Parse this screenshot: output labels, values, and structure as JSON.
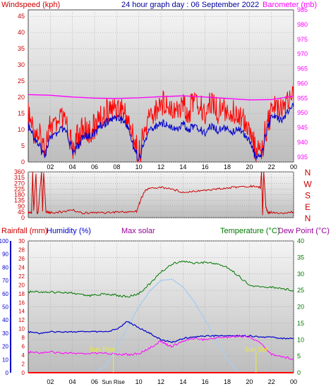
{
  "header": {
    "left_label": "Windspeed (kph)",
    "title": "24 hour graph day : 06 September 2022",
    "right_label": "Barometer (mb)"
  },
  "lower_header": {
    "rainfall_label": "Rainfall (mm)",
    "humidity_label": "Humidity (%)",
    "solar_label": "Max solar",
    "temperature_label": "Temperature (°C)",
    "dewpoint_label": "Dew Point (°C)"
  },
  "annotations": {
    "sunrise_label": "Sun Rise",
    "sunrise_time_label": "Sun Rise",
    "sunset_time_label": "Sun Set"
  },
  "colors": {
    "wind": "#ff0000",
    "gust": "#0000cc",
    "barometer": "#ff00ff",
    "direction": "#cc0000",
    "temperature": "#007700",
    "dewpoint": "#ff00ff",
    "humidity": "#0000cc",
    "rainfall": "#ff0000",
    "solar": "#aaccee"
  },
  "chart_data": [
    {
      "type": "line",
      "name": "wind-barometer-panel",
      "x_ticks": [
        "02",
        "04",
        "06",
        "08",
        "10",
        "12",
        "14",
        "16",
        "18",
        "20",
        "22",
        "00"
      ],
      "x_range": [
        0,
        24
      ],
      "left_axis": {
        "ticks": [
          0,
          5,
          10,
          15,
          20,
          25,
          30,
          35,
          40,
          45
        ],
        "range": [
          0,
          47
        ]
      },
      "right_axis": {
        "ticks": [
          935,
          940,
          945,
          950,
          955,
          960,
          965,
          970,
          975,
          980,
          985
        ],
        "range": [
          933.3,
          985
        ]
      },
      "series": [
        {
          "key": "wind",
          "axis": "left",
          "x": [
            0,
            0.5,
            1,
            1.5,
            2,
            2.5,
            3,
            3.5,
            4,
            4.5,
            5,
            5.5,
            6,
            6.5,
            7,
            7.5,
            8,
            8.5,
            9,
            9.5,
            10,
            10.5,
            11,
            11.5,
            12,
            12.5,
            13,
            13.5,
            14,
            14.5,
            15,
            15.5,
            16,
            16.5,
            17,
            17.5,
            18,
            18.5,
            19,
            19.5,
            20,
            20.5,
            21,
            21.5,
            22,
            22.5,
            23,
            23.5,
            24
          ],
          "values": [
            14,
            10,
            8,
            4,
            12,
            10,
            13,
            11,
            4,
            8,
            10,
            9,
            11,
            13,
            15,
            16,
            17,
            16,
            13,
            8,
            2,
            9,
            14,
            16,
            18,
            19,
            17,
            16,
            18,
            15,
            19,
            17,
            15,
            18,
            16,
            16,
            17,
            15,
            16,
            14,
            11,
            4,
            2,
            10,
            16,
            18,
            17,
            20,
            19
          ]
        },
        {
          "key": "gust",
          "axis": "left",
          "x": [
            0,
            0.5,
            1,
            1.5,
            2,
            2.5,
            3,
            3.5,
            4,
            4.5,
            5,
            5.5,
            6,
            6.5,
            7,
            7.5,
            8,
            8.5,
            9,
            9.5,
            10,
            10.5,
            11,
            11.5,
            12,
            12.5,
            13,
            13.5,
            14,
            14.5,
            15,
            15.5,
            16,
            16.5,
            17,
            17.5,
            18,
            18.5,
            19,
            19.5,
            20,
            20.5,
            21,
            21.5,
            22,
            22.5,
            23,
            23.5,
            24
          ],
          "values": [
            11,
            8,
            5,
            2,
            8,
            8,
            10,
            9,
            3,
            5,
            8,
            8,
            9,
            11,
            12,
            13,
            14,
            13,
            11,
            5,
            1,
            6,
            10,
            11,
            12,
            12,
            11,
            10,
            12,
            10,
            11,
            10,
            9,
            11,
            10,
            10,
            11,
            9,
            11,
            9,
            7,
            2,
            1,
            9,
            14,
            14,
            13,
            16,
            17
          ]
        },
        {
          "key": "barometer",
          "axis": "right",
          "x": [
            0,
            2,
            4,
            6,
            8,
            10,
            12,
            14,
            16,
            18,
            20,
            22,
            24
          ],
          "values": [
            956.2,
            956.0,
            955.4,
            955.0,
            954.9,
            955.1,
            955.5,
            955.8,
            955.4,
            954.9,
            954.4,
            954.5,
            955.7
          ]
        }
      ]
    },
    {
      "type": "line",
      "name": "direction-panel",
      "x_range": [
        0,
        24
      ],
      "left_axis": {
        "ticks": [
          0,
          45,
          90,
          135,
          180,
          225,
          270,
          315,
          360
        ],
        "range": [
          0,
          360
        ]
      },
      "right_labels": [
        "N",
        "W",
        "S",
        "E",
        "N"
      ],
      "series": [
        {
          "key": "direction",
          "x": [
            0,
            0.3,
            0.4,
            0.5,
            0.7,
            0.8,
            0.9,
            1.2,
            1.3,
            1.4,
            1.6,
            2,
            3,
            4,
            5,
            6,
            7,
            8,
            9,
            9.8,
            10.2,
            10.6,
            11,
            12,
            13,
            14,
            15,
            16,
            17,
            18,
            19,
            20,
            20.5,
            21,
            21.1,
            21.2,
            21.3,
            21.5,
            21.7,
            22,
            23,
            24
          ],
          "values": [
            40,
            40,
            360,
            60,
            350,
            30,
            40,
            360,
            50,
            360,
            45,
            40,
            45,
            60,
            35,
            40,
            40,
            45,
            45,
            50,
            150,
            215,
            230,
            240,
            225,
            200,
            210,
            215,
            225,
            235,
            240,
            245,
            248,
            235,
            370,
            20,
            370,
            80,
            40,
            45,
            35,
            45
          ]
        }
      ]
    },
    {
      "type": "line",
      "name": "temperature-humidity-panel",
      "x_ticks": [
        "02",
        "04",
        "06",
        "08",
        "10",
        "12",
        "14",
        "16",
        "18",
        "20",
        "22",
        "00"
      ],
      "x_range": [
        0,
        24
      ],
      "left_outer_axis": {
        "ticks": [
          0,
          10,
          20,
          30,
          40,
          50,
          60,
          70,
          80,
          90,
          100
        ],
        "range": [
          0,
          100
        ]
      },
      "left_inner_axis": {
        "ticks": [
          0,
          2,
          4,
          6,
          8,
          10,
          12,
          14,
          16,
          18,
          20,
          22,
          24,
          26,
          28,
          30
        ],
        "range": [
          0,
          30
        ]
      },
      "right_axis": {
        "ticks": [
          0,
          5,
          10,
          15,
          20,
          25,
          30,
          35,
          40
        ],
        "range": [
          0,
          40
        ]
      },
      "series": [
        {
          "key": "temperature",
          "axis": "right",
          "x": [
            0,
            1,
            2,
            3,
            4,
            5,
            5.5,
            6,
            7,
            8,
            9,
            10,
            11,
            12,
            13,
            14,
            15,
            16,
            17,
            18,
            19,
            20,
            21,
            22,
            23,
            24
          ],
          "values": [
            24.5,
            24.6,
            24.4,
            24.4,
            24.2,
            23.5,
            23.2,
            23.6,
            23.9,
            23.5,
            23.0,
            24.0,
            27.0,
            30.5,
            33.0,
            33.8,
            33.3,
            33.5,
            33.1,
            32.0,
            29.5,
            26.5,
            26.0,
            26.0,
            25.5,
            25.0
          ]
        },
        {
          "key": "dewpoint",
          "axis": "right",
          "x": [
            0,
            1,
            2,
            3,
            4,
            5,
            6,
            7,
            8,
            9,
            10,
            11,
            12,
            12.5,
            13,
            14,
            15,
            16,
            17,
            18,
            19,
            20,
            21,
            22,
            23,
            24
          ],
          "values": [
            6.2,
            6.1,
            6.3,
            6.0,
            6.0,
            5.6,
            5.8,
            5.9,
            5.6,
            5.5,
            5.7,
            7.5,
            9.6,
            8.5,
            8.0,
            9.5,
            10.5,
            10.0,
            10.6,
            10.8,
            11.2,
            10.8,
            9.0,
            5.6,
            4.8,
            4.2
          ]
        },
        {
          "key": "humidity",
          "axis": "left_outer",
          "x": [
            0,
            1,
            2,
            3,
            4,
            5,
            6,
            7,
            8,
            9,
            10,
            11,
            12,
            13,
            14,
            15,
            16,
            17,
            18,
            19,
            20,
            21,
            22,
            23,
            24
          ],
          "values": [
            31,
            30,
            31,
            31,
            31,
            31,
            31,
            31,
            33,
            39,
            34,
            30,
            25,
            23,
            26,
            27,
            28,
            28,
            28,
            28,
            28,
            27,
            27,
            26,
            26
          ]
        },
        {
          "key": "solar",
          "axis": "left_outer",
          "x": [
            6,
            7,
            8,
            9,
            10,
            11,
            12,
            13,
            14,
            15,
            16,
            17,
            18,
            19
          ],
          "values": [
            0,
            5,
            19,
            35,
            50,
            62,
            70,
            71,
            65,
            54,
            40,
            25,
            10,
            0
          ]
        },
        {
          "key": "rainfall",
          "axis": "left_inner",
          "x": [
            0,
            24
          ],
          "values": [
            0,
            0
          ]
        }
      ],
      "markers": {
        "sunrise_hour": 7.7,
        "sunrise_label_hour": 6.7,
        "sunset_hour": 20.6
      }
    }
  ]
}
